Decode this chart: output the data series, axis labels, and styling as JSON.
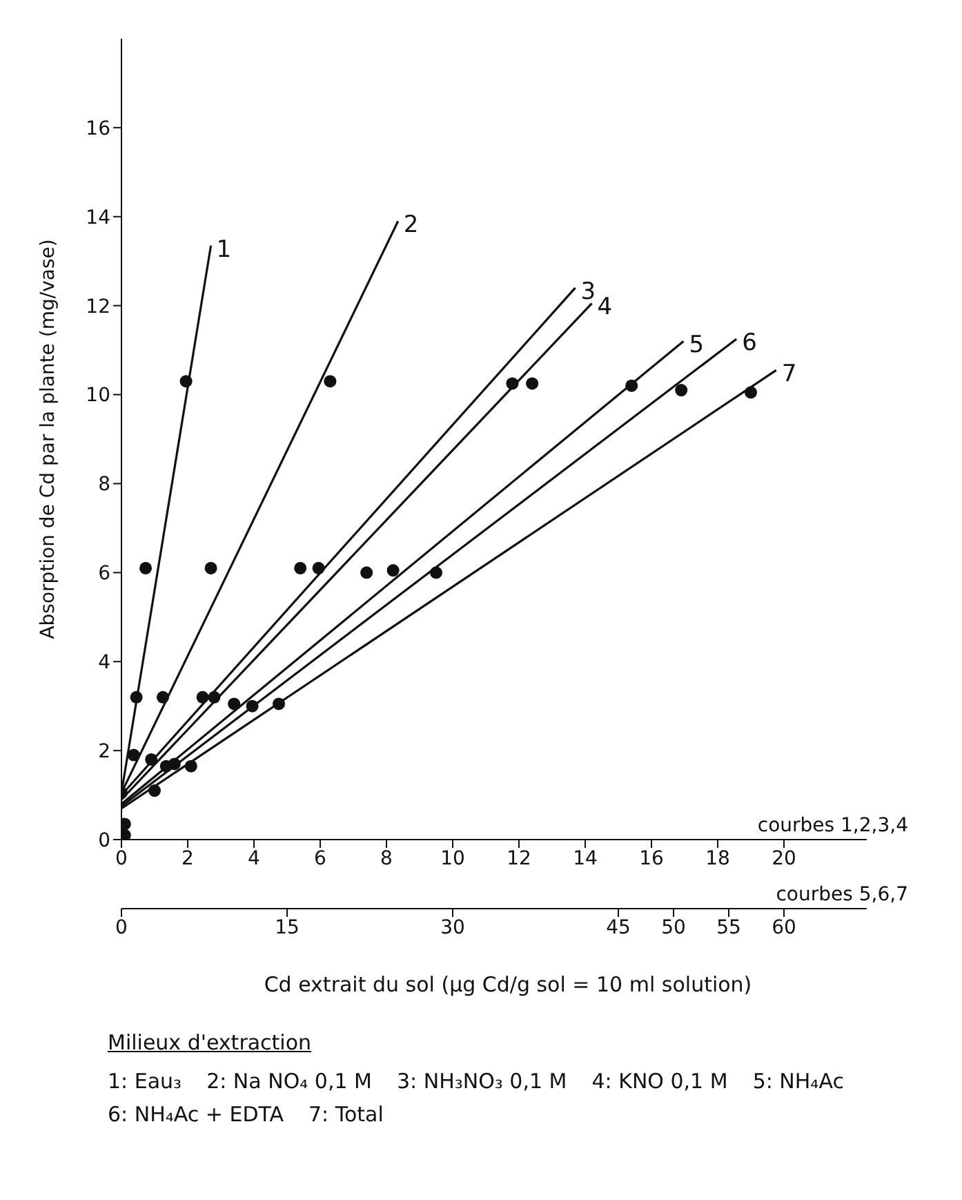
{
  "chart_data": {
    "type": "line",
    "ylabel": "Absorption de Cd par la plante (mg/vase)",
    "xlabel": "courbes 1,2,3,4",
    "x2label": "courbes 5,6,7",
    "legend_title": "Milieux d'extraction",
    "annotations": [
      "Cd extrait du sol (µg Cd/g sol = 10 ml solution)",
      "1: Eau₃",
      "2: Na NO₄ 0,1 M",
      "3: NH₃NO₃ 0,1 M",
      "4: KNO 0,1 M",
      "5: NH₄Ac",
      "6: NH₄Ac + EDTA",
      "7: Total"
    ],
    "xlim": [
      0,
      22.5
    ],
    "xticks": [
      0,
      2,
      4,
      6,
      8,
      10,
      12,
      14,
      16,
      18,
      20
    ],
    "x2lim": [
      0,
      67.5
    ],
    "x2ticks": [
      0,
      15,
      30,
      45,
      50,
      55,
      60
    ],
    "ylim": [
      0,
      18
    ],
    "yticks": [
      0,
      2,
      4,
      6,
      8,
      10,
      12,
      14,
      16
    ],
    "grid": false,
    "legend": false,
    "series": [
      {
        "type": "scatter",
        "color": "#111111",
        "marker": "circle",
        "x": [
          0.73,
          2.7,
          5.4,
          5.95,
          7.4,
          8.2,
          9.5,
          0.45,
          1.25,
          2.45,
          2.8,
          3.4,
          3.95,
          4.75,
          0.37,
          0.9,
          1.35,
          1.6,
          2.1,
          1.0,
          0,
          0.1,
          0.1,
          1.95,
          6.3,
          11.8,
          12.4,
          15.4,
          16.9,
          19.0
        ],
        "values": [
          6.1,
          6.1,
          6.1,
          6.1,
          6.0,
          6.05,
          6.0,
          3.2,
          3.2,
          3.2,
          3.2,
          3.05,
          3.0,
          3.05,
          1.9,
          1.8,
          1.65,
          1.7,
          1.65,
          1.1,
          1.05,
          0.35,
          0.1,
          10.3,
          10.3,
          10.25,
          10.25,
          10.2,
          10.1,
          10.05
        ]
      },
      {
        "name": "1",
        "color": "#111111",
        "x": [
          0,
          2.7
        ],
        "values": [
          1.05,
          13.35
        ]
      },
      {
        "name": "2",
        "color": "#111111",
        "x": [
          0,
          8.35
        ],
        "values": [
          1.05,
          13.9
        ]
      },
      {
        "name": "3",
        "color": "#111111",
        "x": [
          0,
          13.7
        ],
        "values": [
          1.0,
          12.4
        ]
      },
      {
        "name": "4",
        "color": "#111111",
        "x": [
          0,
          14.2
        ],
        "values": [
          0.9,
          12.05
        ]
      },
      {
        "name": "5",
        "color": "#111111",
        "axis": "x2",
        "x": [
          0,
          50.9
        ],
        "values": [
          0.8,
          11.2
        ]
      },
      {
        "name": "6",
        "color": "#111111",
        "axis": "x2",
        "x": [
          0,
          55.7
        ],
        "values": [
          0.75,
          11.25
        ]
      },
      {
        "name": "7",
        "color": "#111111",
        "axis": "x2",
        "x": [
          0,
          59.3
        ],
        "values": [
          0.7,
          10.55
        ]
      }
    ]
  }
}
